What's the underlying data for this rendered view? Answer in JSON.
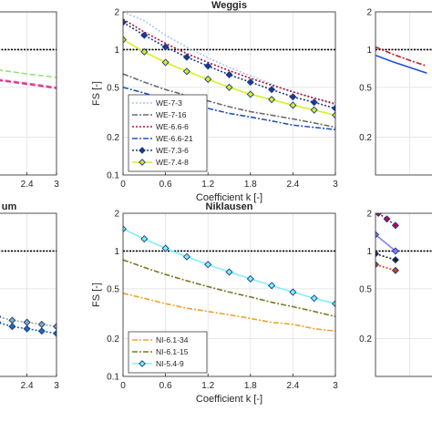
{
  "chart_data": [
    {
      "id": "left-top",
      "type": "line",
      "title": "",
      "xlabel": "",
      "ylabel": "",
      "xlim": [
        0,
        3
      ],
      "ylim": [
        0.1,
        2
      ],
      "yscale": "log",
      "xticks": [
        "2.4",
        "3"
      ],
      "yticks": [],
      "reference_line": 1,
      "series": [
        {
          "name": "",
          "color": "#9be07a",
          "style": "dash",
          "x": [
            0,
            0.6,
            1.2,
            1.8,
            2.4,
            3
          ],
          "y": [
            0.95,
            0.85,
            0.76,
            0.69,
            0.64,
            0.6
          ]
        },
        {
          "name": "",
          "color": "#ff5aa0",
          "style": "dash",
          "x": [
            0,
            0.6,
            1.2,
            1.8,
            2.4,
            3
          ],
          "y": [
            0.82,
            0.72,
            0.64,
            0.58,
            0.54,
            0.5
          ]
        },
        {
          "name": "",
          "color": "#d0308a",
          "style": "dash",
          "x": [
            0,
            0.6,
            1.2,
            1.8,
            2.4,
            3
          ],
          "y": [
            0.78,
            0.69,
            0.62,
            0.57,
            0.53,
            0.49
          ]
        }
      ]
    },
    {
      "id": "weggis",
      "type": "line",
      "title": "Weggis",
      "xlabel": "Coefficient k [-]",
      "ylabel": "FS [-]",
      "xlim": [
        0,
        3
      ],
      "ylim": [
        0.1,
        2
      ],
      "yscale": "log",
      "xticks": [
        "0",
        "0.6",
        "1.2",
        "1.8",
        "2.4",
        "3"
      ],
      "yticks": [
        "0.1",
        "0.2",
        "0.5",
        "1",
        "2"
      ],
      "reference_line": 1,
      "legend": "lower-left",
      "series": [
        {
          "name": "WE-7-3",
          "color": "#a8c8f0",
          "style": "dot",
          "marker": "",
          "x": [
            0,
            0.3,
            0.6,
            0.9,
            1.2,
            1.5,
            1.8,
            2.1,
            2.4,
            2.7,
            3
          ],
          "y": [
            2.0,
            1.7,
            1.3,
            1.05,
            0.86,
            0.72,
            0.62,
            0.53,
            0.46,
            0.41,
            0.36
          ]
        },
        {
          "name": "WE-7-16",
          "color": "#6a6a6a",
          "style": "dashdot",
          "marker": "",
          "x": [
            0,
            0.3,
            0.6,
            0.9,
            1.2,
            1.5,
            1.8,
            2.1,
            2.4,
            2.7,
            3
          ],
          "y": [
            0.64,
            0.55,
            0.48,
            0.43,
            0.39,
            0.35,
            0.32,
            0.3,
            0.28,
            0.26,
            0.24
          ]
        },
        {
          "name": "WE-6.6-6",
          "color": "#b01030",
          "style": "dot",
          "marker": "",
          "x": [
            0,
            0.3,
            0.6,
            0.9,
            1.2,
            1.5,
            1.8,
            2.1,
            2.4,
            2.7,
            3
          ],
          "y": [
            1.75,
            1.38,
            1.12,
            0.93,
            0.79,
            0.68,
            0.59,
            0.52,
            0.46,
            0.41,
            0.37
          ]
        },
        {
          "name": "WE-6.6-21",
          "color": "#2050c0",
          "style": "dashdot",
          "marker": "",
          "x": [
            0,
            0.3,
            0.6,
            0.9,
            1.2,
            1.5,
            1.8,
            2.1,
            2.4,
            2.7,
            3
          ],
          "y": [
            0.5,
            0.45,
            0.4,
            0.37,
            0.34,
            0.31,
            0.29,
            0.27,
            0.25,
            0.24,
            0.23
          ]
        },
        {
          "name": "WE-7.3-6",
          "color": "#1a3a8a",
          "style": "dot",
          "marker": "diamond",
          "x": [
            0,
            0.3,
            0.6,
            0.9,
            1.2,
            1.5,
            1.8,
            2.1,
            2.4,
            2.7,
            3
          ],
          "y": [
            1.65,
            1.3,
            1.05,
            0.87,
            0.74,
            0.63,
            0.55,
            0.48,
            0.42,
            0.38,
            0.34
          ]
        },
        {
          "name": "WE-7.4-8",
          "color": "#d8f020",
          "style": "solid",
          "marker": "diamond",
          "x": [
            0,
            0.3,
            0.6,
            0.9,
            1.2,
            1.5,
            1.8,
            2.1,
            2.4,
            2.7,
            3
          ],
          "y": [
            1.2,
            0.96,
            0.79,
            0.67,
            0.58,
            0.5,
            0.44,
            0.4,
            0.36,
            0.33,
            0.3
          ]
        }
      ]
    },
    {
      "id": "right-top",
      "type": "line",
      "title": "",
      "xlabel": "",
      "ylabel": "",
      "xlim": [
        0,
        3
      ],
      "ylim": [
        0.1,
        2
      ],
      "yscale": "log",
      "xticks": [],
      "yticks": [
        "2",
        "1",
        "0.5",
        "0.2"
      ],
      "reference_line": 1,
      "series": [
        {
          "name": "",
          "color": "#c02020",
          "style": "dashdot",
          "x": [
            0,
            0.3,
            0.6,
            0.9
          ],
          "y": [
            1.05,
            0.92,
            0.82,
            0.74
          ]
        },
        {
          "name": "",
          "color": "#2050d0",
          "style": "solid",
          "x": [
            0,
            0.3,
            0.6,
            0.9
          ],
          "y": [
            0.9,
            0.8,
            0.72,
            0.65
          ]
        }
      ]
    },
    {
      "id": "left-bottom",
      "type": "line",
      "title": "um",
      "xlabel": "",
      "ylabel": "",
      "xlim": [
        0,
        3
      ],
      "ylim": [
        0.1,
        2
      ],
      "yscale": "log",
      "xticks": [
        "2.4",
        "3"
      ],
      "yticks": [],
      "reference_line": 1,
      "series": [
        {
          "name": "",
          "color": "#8aa8a0",
          "style": "dot",
          "marker": "diamond",
          "x": [
            0,
            0.3,
            0.6,
            0.9,
            1.2,
            1.5,
            1.8,
            2.1,
            2.4,
            2.7,
            3
          ],
          "y": [
            0.5,
            0.45,
            0.41,
            0.38,
            0.35,
            0.32,
            0.3,
            0.28,
            0.27,
            0.26,
            0.25
          ]
        },
        {
          "name": "",
          "color": "#1a6ab0",
          "style": "dot",
          "marker": "diamond",
          "x": [
            0,
            0.3,
            0.6,
            0.9,
            1.2,
            1.5,
            1.8,
            2.1,
            2.4,
            2.7,
            3
          ],
          "y": [
            0.44,
            0.4,
            0.36,
            0.33,
            0.31,
            0.29,
            0.27,
            0.25,
            0.24,
            0.23,
            0.22
          ]
        }
      ]
    },
    {
      "id": "niklausen",
      "type": "line",
      "title": "Niklausen",
      "xlabel": "Coefficient k [-]",
      "ylabel": "FS [-]",
      "xlim": [
        0,
        3
      ],
      "ylim": [
        0.1,
        2
      ],
      "yscale": "log",
      "xticks": [
        "0",
        "0.6",
        "1.2",
        "1.8",
        "2.4",
        "3"
      ],
      "yticks": [
        "0.1",
        "0.2",
        "0.5",
        "1",
        "2"
      ],
      "reference_line": 1,
      "legend": "lower-left",
      "series": [
        {
          "name": "NI-6.1-34",
          "color": "#f0a030",
          "style": "dashdot",
          "marker": "",
          "x": [
            0,
            0.3,
            0.6,
            0.9,
            1.2,
            1.5,
            1.8,
            2.1,
            2.4,
            2.7,
            3
          ],
          "y": [
            0.46,
            0.42,
            0.38,
            0.35,
            0.33,
            0.31,
            0.29,
            0.27,
            0.26,
            0.24,
            0.23
          ]
        },
        {
          "name": "NI-6.1-15",
          "color": "#7a7a20",
          "style": "dashdot",
          "marker": "",
          "x": [
            0,
            0.3,
            0.6,
            0.9,
            1.2,
            1.5,
            1.8,
            2.1,
            2.4,
            2.7,
            3
          ],
          "y": [
            0.85,
            0.74,
            0.65,
            0.58,
            0.52,
            0.47,
            0.43,
            0.39,
            0.36,
            0.33,
            0.3
          ]
        },
        {
          "name": "NI-5.4-9",
          "color": "#80f0f8",
          "style": "solid",
          "marker": "diamond",
          "x": [
            0,
            0.3,
            0.6,
            0.9,
            1.2,
            1.5,
            1.8,
            2.1,
            2.4,
            2.7,
            3
          ],
          "y": [
            1.5,
            1.25,
            1.05,
            0.9,
            0.78,
            0.68,
            0.6,
            0.53,
            0.47,
            0.42,
            0.38
          ]
        }
      ]
    },
    {
      "id": "right-bottom",
      "type": "line",
      "title": "",
      "xlabel": "",
      "ylabel": "",
      "xlim": [
        0,
        3
      ],
      "ylim": [
        0.1,
        2
      ],
      "yscale": "log",
      "xticks": [],
      "yticks": [
        "2",
        "1",
        "0.5",
        "0.2"
      ],
      "reference_line": 1,
      "series": [
        {
          "name": "",
          "color": "#b01040",
          "style": "dot",
          "marker": "diamond",
          "x": [
            0.05,
            0.2,
            0.35
          ],
          "y": [
            2.0,
            1.8,
            1.6
          ]
        },
        {
          "name": "",
          "color": "#8080ff",
          "style": "solid",
          "marker": "diamond",
          "x": [
            0,
            0.35
          ],
          "y": [
            1.35,
            1.0
          ]
        },
        {
          "name": "",
          "color": "#202020",
          "style": "dot",
          "marker": "diamond",
          "x": [
            0,
            0.35
          ],
          "y": [
            0.95,
            0.85
          ]
        },
        {
          "name": "",
          "color": "#d04010",
          "style": "dot",
          "marker": "diamond",
          "x": [
            0,
            0.35
          ],
          "y": [
            0.78,
            0.7
          ]
        }
      ]
    }
  ]
}
